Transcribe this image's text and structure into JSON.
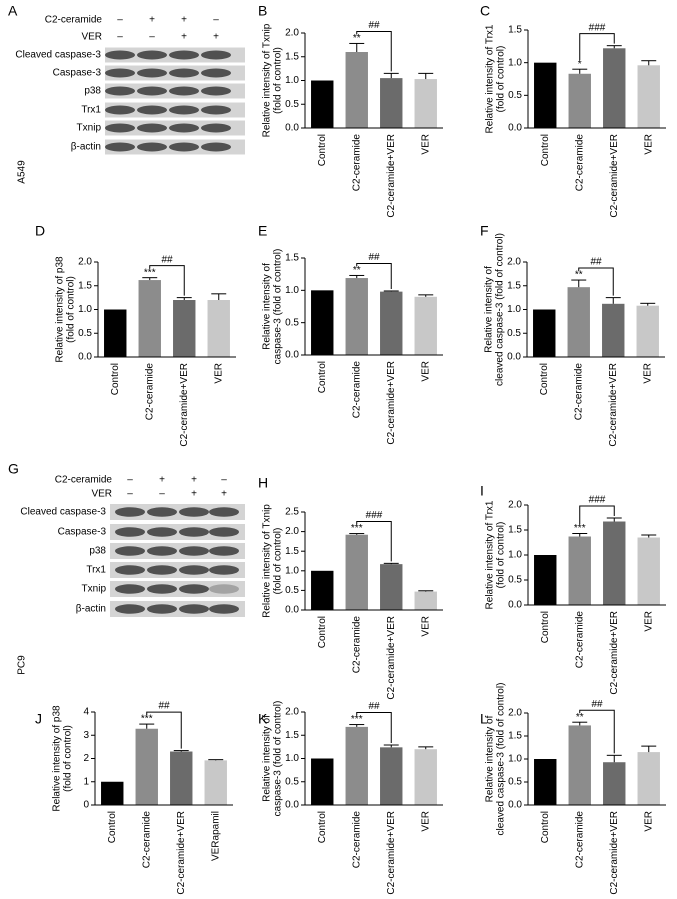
{
  "blots": [
    {
      "panel": "A",
      "cell_line": "A549",
      "treatments": [
        {
          "name": "C2-ceramide",
          "signs": [
            "–",
            "+",
            "+",
            "–"
          ]
        },
        {
          "name": "VER",
          "signs": [
            "–",
            "–",
            "+",
            "+"
          ]
        }
      ],
      "rows": [
        "Cleaved caspase-3",
        "Caspase-3",
        "p38",
        "Trx1",
        "Txnip",
        "β-actin"
      ]
    },
    {
      "panel": "G",
      "cell_line": "PC9",
      "treatments": [
        {
          "name": "C2-ceramide",
          "signs": [
            "–",
            "+",
            "+",
            "–"
          ]
        },
        {
          "name": "VER",
          "signs": [
            "–",
            "–",
            "+",
            "+"
          ]
        }
      ],
      "rows": [
        "Cleaved caspase-3",
        "Caspase-3",
        "p38",
        "Trx1",
        "Txnip",
        "β-actin"
      ]
    }
  ],
  "chart_data": [
    {
      "type": "bar",
      "panel": "B",
      "ylabel": [
        "Relative intensity of Txnip",
        "(fold of control)"
      ],
      "categories": [
        "Control",
        "C2-ceramide",
        "C2-ceramide+VER",
        "VER"
      ],
      "values": [
        1.0,
        1.6,
        1.05,
        1.03
      ],
      "errors": [
        0,
        0.18,
        0.1,
        0.12
      ],
      "colors": [
        "#000000",
        "#8c8c8c",
        "#6b6b6b",
        "#c8c8c8"
      ],
      "ylim": [
        0,
        2
      ],
      "yticks": [
        {
          "value": 0,
          "label": "0.0"
        },
        {
          "value": 0.5,
          "label": "0.5"
        },
        {
          "value": 1,
          "label": "1.0"
        },
        {
          "value": 1.5,
          "label": "1.5"
        },
        {
          "value": 2,
          "label": "2.0"
        }
      ],
      "star_label": "**",
      "bracket_label": "##"
    },
    {
      "type": "bar",
      "panel": "C",
      "ylabel": [
        "Relative intensity of Trx1",
        "(fold of control)"
      ],
      "categories": [
        "Control",
        "C2-ceramide",
        "C2-ceramide+VER",
        "VER"
      ],
      "values": [
        1.0,
        0.83,
        1.22,
        0.96
      ],
      "errors": [
        0,
        0.07,
        0.04,
        0.07
      ],
      "colors": [
        "#000000",
        "#8c8c8c",
        "#6b6b6b",
        "#c8c8c8"
      ],
      "ylim": [
        0,
        1.5
      ],
      "yticks": [
        {
          "value": 0,
          "label": "0.0"
        },
        {
          "value": 0.5,
          "label": "0.5"
        },
        {
          "value": 1,
          "label": "1.0"
        },
        {
          "value": 1.5,
          "label": "1.5"
        }
      ],
      "star_label": "*",
      "bracket_label": "###"
    },
    {
      "type": "bar",
      "panel": "D",
      "ylabel": [
        "Relative intensity of p38",
        "(fold of control)"
      ],
      "categories": [
        "Control",
        "C2-ceramide",
        "C2-ceramide+VER",
        "VER"
      ],
      "values": [
        1.0,
        1.62,
        1.2,
        1.2
      ],
      "errors": [
        0,
        0.05,
        0.05,
        0.13
      ],
      "colors": [
        "#000000",
        "#8c8c8c",
        "#6b6b6b",
        "#c8c8c8"
      ],
      "ylim": [
        0,
        2
      ],
      "yticks": [
        {
          "value": 0,
          "label": "0.0"
        },
        {
          "value": 0.5,
          "label": "0.5"
        },
        {
          "value": 1,
          "label": "1.0"
        },
        {
          "value": 1.5,
          "label": "1.5"
        },
        {
          "value": 2,
          "label": "2.0"
        }
      ],
      "star_label": "***",
      "bracket_label": "##"
    },
    {
      "type": "bar",
      "panel": "E",
      "ylabel": [
        "Relative intensity of",
        "caspase-3 (fold of control)"
      ],
      "categories": [
        "Control",
        "C2-ceramide",
        "C2-ceramide+VER",
        "VER"
      ],
      "values": [
        1.0,
        1.19,
        0.98,
        0.9
      ],
      "errors": [
        0,
        0.04,
        0.01,
        0.03
      ],
      "colors": [
        "#000000",
        "#8c8c8c",
        "#6b6b6b",
        "#c8c8c8"
      ],
      "ylim": [
        0,
        1.5
      ],
      "yticks": [
        {
          "value": 0,
          "label": "0.0"
        },
        {
          "value": 0.5,
          "label": "0.5"
        },
        {
          "value": 1,
          "label": "1.0"
        },
        {
          "value": 1.5,
          "label": "1.5"
        }
      ],
      "star_label": "**",
      "bracket_label": "##"
    },
    {
      "type": "bar",
      "panel": "F",
      "ylabel": [
        "Relative intensity of",
        "cleaved caspase-3 (fold of control)"
      ],
      "categories": [
        "Control",
        "C2-ceramide",
        "C2-ceramide+VER",
        "VER"
      ],
      "values": [
        1.0,
        1.47,
        1.12,
        1.08
      ],
      "errors": [
        0,
        0.15,
        0.13,
        0.05
      ],
      "colors": [
        "#000000",
        "#8c8c8c",
        "#6b6b6b",
        "#c8c8c8"
      ],
      "ylim": [
        0,
        2
      ],
      "yticks": [
        {
          "value": 0,
          "label": "0.0"
        },
        {
          "value": 0.5,
          "label": "0.5"
        },
        {
          "value": 1,
          "label": "1.0"
        },
        {
          "value": 1.5,
          "label": "1.5"
        },
        {
          "value": 2,
          "label": "2.0"
        }
      ],
      "star_label": "**",
      "bracket_label": "##"
    },
    {
      "type": "bar",
      "panel": "H",
      "ylabel": [
        "Relative intensity of Txnip",
        "(fold of control)"
      ],
      "categories": [
        "Control",
        "C2-ceramide",
        "C2-ceramide+VER",
        "VER"
      ],
      "values": [
        1.0,
        1.92,
        1.17,
        0.47
      ],
      "errors": [
        0,
        0.03,
        0.02,
        0.02
      ],
      "colors": [
        "#000000",
        "#8c8c8c",
        "#6b6b6b",
        "#c8c8c8"
      ],
      "ylim": [
        0,
        2.5
      ],
      "yticks": [
        {
          "value": 0,
          "label": "0.0"
        },
        {
          "value": 0.5,
          "label": "0.5"
        },
        {
          "value": 1,
          "label": "1.0"
        },
        {
          "value": 1.5,
          "label": "1.5"
        },
        {
          "value": 2,
          "label": "2.0"
        },
        {
          "value": 2.5,
          "label": "2.5"
        }
      ],
      "star_label": "***",
      "bracket_label": "###"
    },
    {
      "type": "bar",
      "panel": "I",
      "ylabel": [
        "Relative intensity of Trx1",
        "(fold of control)"
      ],
      "categories": [
        "Control",
        "C2-ceramide",
        "C2-ceramide+VER",
        "VER"
      ],
      "values": [
        1.0,
        1.37,
        1.67,
        1.35
      ],
      "errors": [
        0,
        0.06,
        0.07,
        0.05
      ],
      "colors": [
        "#000000",
        "#8c8c8c",
        "#6b6b6b",
        "#c8c8c8"
      ],
      "ylim": [
        0,
        2
      ],
      "yticks": [
        {
          "value": 0,
          "label": "0.0"
        },
        {
          "value": 0.5,
          "label": "0.5"
        },
        {
          "value": 1,
          "label": "1.0"
        },
        {
          "value": 1.5,
          "label": "1.5"
        },
        {
          "value": 2,
          "label": "2.0"
        }
      ],
      "star_label": "***",
      "bracket_label": "###"
    },
    {
      "type": "bar",
      "panel": "J",
      "ylabel": [
        "Relative intensity of p38",
        "(fold of control)"
      ],
      "categories": [
        "Control",
        "C2-ceramide",
        "C2-ceramide+VER",
        "VERapamil"
      ],
      "values": [
        1.0,
        3.28,
        2.3,
        1.92
      ],
      "errors": [
        0,
        0.2,
        0.04,
        0.03
      ],
      "colors": [
        "#000000",
        "#8c8c8c",
        "#6b6b6b",
        "#c8c8c8"
      ],
      "ylim": [
        0,
        4
      ],
      "yticks": [
        0,
        1,
        2,
        3,
        4
      ],
      "star_label": "***",
      "bracket_label": "##"
    },
    {
      "type": "bar",
      "panel": "K",
      "ylabel": [
        "Relative intensity of",
        "caspase-3 (fold of control)"
      ],
      "categories": [
        "Control",
        "C2-ceramide",
        "C2-ceramide+VER",
        "VER"
      ],
      "values": [
        1.0,
        1.68,
        1.24,
        1.2
      ],
      "errors": [
        0,
        0.05,
        0.05,
        0.05
      ],
      "colors": [
        "#000000",
        "#8c8c8c",
        "#6b6b6b",
        "#c8c8c8"
      ],
      "ylim": [
        0,
        2
      ],
      "yticks": [
        {
          "value": 0,
          "label": "0.0"
        },
        {
          "value": 0.5,
          "label": "0.5"
        },
        {
          "value": 1,
          "label": "1.0"
        },
        {
          "value": 1.5,
          "label": "1.5"
        },
        {
          "value": 2,
          "label": "2.0"
        }
      ],
      "star_label": "***",
      "bracket_label": "##"
    },
    {
      "type": "bar",
      "panel": "L",
      "ylabel": [
        "Relative intensity of",
        "cleaved caspase-3 (fold of control)"
      ],
      "categories": [
        "Control",
        "C2-ceramide",
        "C2-ceramide+VER",
        "VER"
      ],
      "values": [
        1.0,
        1.73,
        0.93,
        1.15
      ],
      "errors": [
        0,
        0.07,
        0.15,
        0.13
      ],
      "colors": [
        "#000000",
        "#8c8c8c",
        "#6b6b6b",
        "#c8c8c8"
      ],
      "ylim": [
        0,
        2
      ],
      "yticks": [
        {
          "value": 0,
          "label": "0.0"
        },
        {
          "value": 0.5,
          "label": "0.5"
        },
        {
          "value": 1,
          "label": "1.0"
        },
        {
          "value": 1.5,
          "label": "1.5"
        },
        {
          "value": 2,
          "label": "2.0"
        }
      ],
      "star_label": "**",
      "bracket_label": "##"
    }
  ]
}
